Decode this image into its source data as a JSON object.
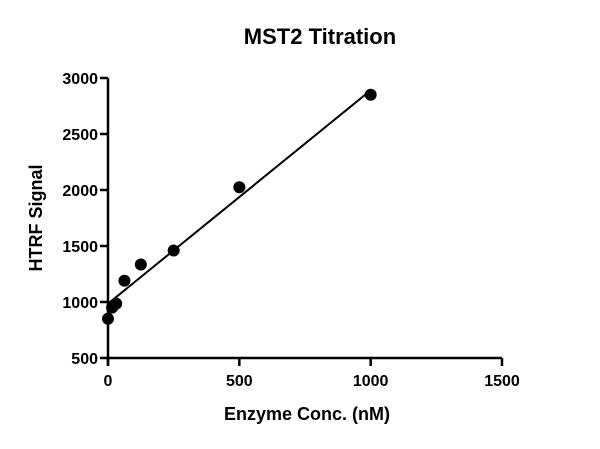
{
  "chart_data": {
    "type": "scatter",
    "title": "MST2 Titration",
    "xlabel": "Enzyme Conc. (nM)",
    "ylabel": "HTRF Signal",
    "xlim": [
      0,
      1500
    ],
    "ylim": [
      500,
      3000
    ],
    "xticks": [
      "0",
      "500",
      "1000",
      "1500"
    ],
    "yticks": [
      "500",
      "1000",
      "1500",
      "2000",
      "2500",
      "3000"
    ],
    "grid": false,
    "legend": "none",
    "series": [
      {
        "x": [
          0,
          15.6,
          31.25,
          62.5,
          125,
          250,
          500,
          1000
        ],
        "y": [
          850,
          950,
          985,
          1190,
          1335,
          1460,
          2025,
          2850
        ]
      }
    ],
    "fit_line": {
      "x": [
        0,
        1000
      ],
      "y": [
        985,
        2890
      ]
    },
    "color": "#000000"
  }
}
